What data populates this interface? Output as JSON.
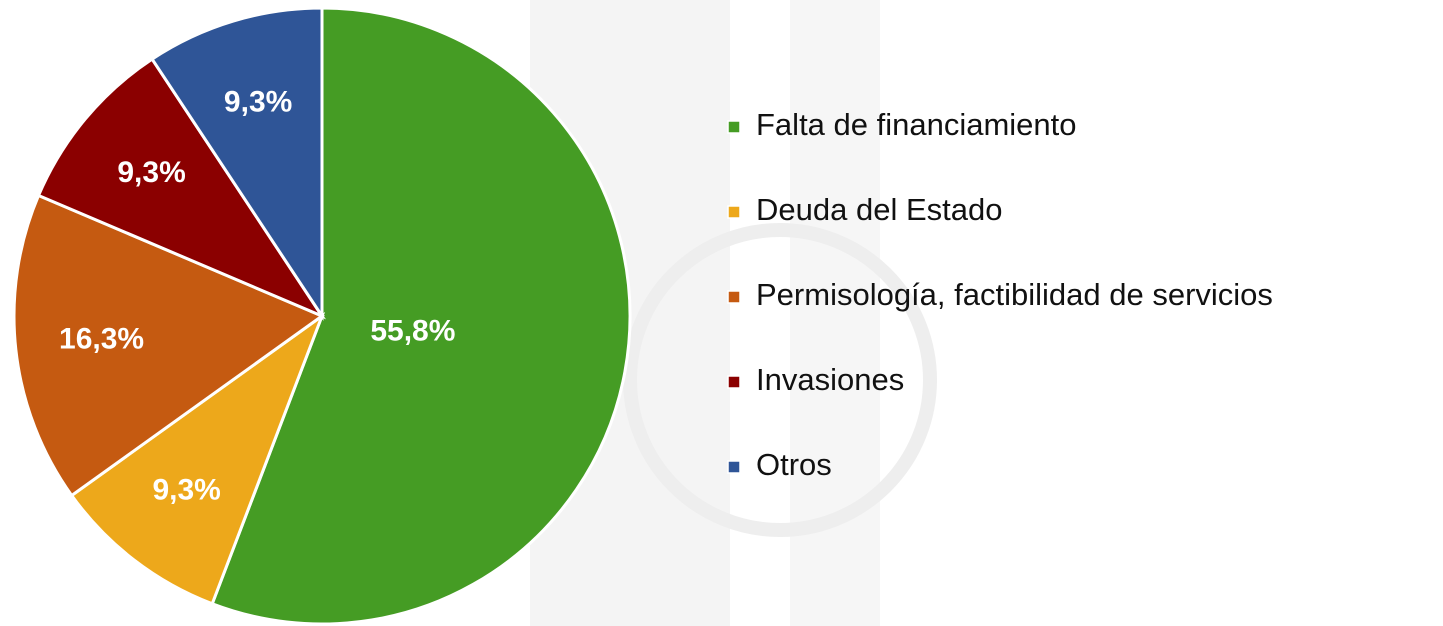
{
  "chart_data": {
    "type": "pie",
    "categories": [
      "Falta de financiamiento",
      "Deuda del Estado",
      "Permisología, factibilidad de servicios",
      "Invasiones",
      "Otros"
    ],
    "values": [
      55.8,
      9.3,
      16.3,
      9.3,
      9.3
    ],
    "value_labels": [
      "55,8%",
      "9,3%",
      "16,3%",
      "9,3%",
      "9,3%"
    ],
    "colors": [
      "#459c24",
      "#eda81b",
      "#c55a11",
      "#8b0000",
      "#2f5597"
    ],
    "legend": "right"
  }
}
